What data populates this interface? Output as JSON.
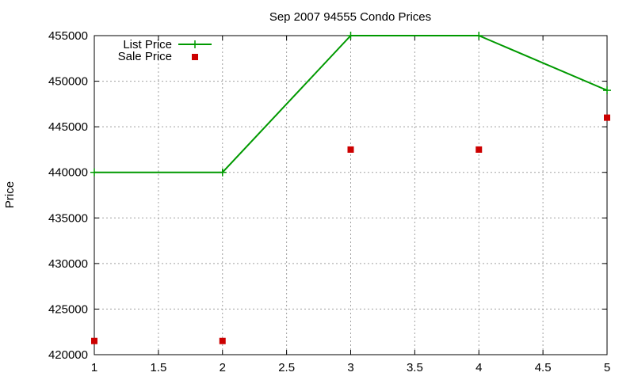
{
  "chart_data": {
    "type": "line",
    "title": "Sep 2007 94555 Condo Prices",
    "xlabel": "",
    "ylabel": "Price",
    "xlim": [
      1,
      5
    ],
    "ylim": [
      420000,
      455000
    ],
    "x_ticks": [
      "1",
      "1.5",
      "2",
      "2.5",
      "3",
      "3.5",
      "4",
      "4.5",
      "5"
    ],
    "y_ticks": [
      "420000",
      "425000",
      "430000",
      "435000",
      "440000",
      "445000",
      "450000",
      "455000"
    ],
    "grid": true,
    "legend_position": "top-left",
    "series": [
      {
        "name": "List Price",
        "style": "lines+points",
        "marker": "plus",
        "color": "#009900",
        "x": [
          1,
          2,
          3,
          4,
          5
        ],
        "y": [
          440000,
          440000,
          455000,
          455000,
          449000
        ]
      },
      {
        "name": "Sale Price",
        "style": "points",
        "marker": "square",
        "color": "#cc0000",
        "x": [
          1,
          2,
          3,
          4,
          5
        ],
        "y": [
          421500,
          421500,
          442500,
          442500,
          446000
        ]
      }
    ]
  }
}
